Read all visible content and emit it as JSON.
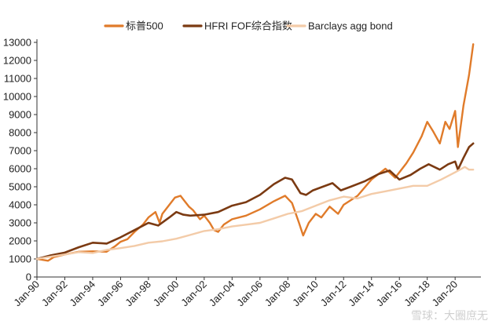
{
  "chart_data": {
    "type": "line",
    "title": "",
    "xlabel": "",
    "ylabel": "",
    "ylim": [
      0,
      13000
    ],
    "y_ticks": [
      0,
      1000,
      2000,
      3000,
      4000,
      5000,
      6000,
      7000,
      8000,
      9000,
      10000,
      11000,
      12000,
      13000
    ],
    "x_range": [
      1990.0,
      2021.4
    ],
    "x_tick_labels": [
      "Jan-90",
      "Jan-92",
      "Jan-94",
      "Jan-96",
      "Jan-98",
      "Jan-00",
      "Jan-02",
      "Jan-04",
      "Jan-06",
      "Jan-08",
      "Jan-10",
      "Jan-12",
      "Jan-14",
      "Jan-16",
      "Jan-18",
      "Jan-20"
    ],
    "x_tick_years": [
      1990,
      1992,
      1994,
      1996,
      1998,
      2000,
      2002,
      2004,
      2006,
      2008,
      2010,
      2012,
      2014,
      2016,
      2018,
      2020
    ],
    "grid": false,
    "legend_position": "top",
    "series": [
      {
        "name": "标普500",
        "color": "#E07B2A",
        "width": 2.4,
        "points": [
          [
            1990.0,
            1000
          ],
          [
            1990.8,
            900
          ],
          [
            1991.2,
            1100
          ],
          [
            1992.0,
            1250
          ],
          [
            1993.0,
            1400
          ],
          [
            1994.0,
            1420
          ],
          [
            1995.0,
            1400
          ],
          [
            1995.6,
            1700
          ],
          [
            1996.0,
            1950
          ],
          [
            1996.5,
            2100
          ],
          [
            1997.0,
            2500
          ],
          [
            1997.6,
            2900
          ],
          [
            1998.0,
            3300
          ],
          [
            1998.5,
            3600
          ],
          [
            1998.8,
            3000
          ],
          [
            1999.0,
            3500
          ],
          [
            1999.5,
            4000
          ],
          [
            1999.9,
            4400
          ],
          [
            2000.3,
            4500
          ],
          [
            2000.6,
            4200
          ],
          [
            2000.9,
            3900
          ],
          [
            2001.2,
            3700
          ],
          [
            2001.7,
            3200
          ],
          [
            2002.0,
            3400
          ],
          [
            2002.4,
            3000
          ],
          [
            2002.7,
            2600
          ],
          [
            2003.0,
            2500
          ],
          [
            2003.4,
            2900
          ],
          [
            2004.0,
            3200
          ],
          [
            2005.0,
            3400
          ],
          [
            2006.0,
            3750
          ],
          [
            2007.0,
            4200
          ],
          [
            2007.8,
            4500
          ],
          [
            2008.3,
            4100
          ],
          [
            2008.8,
            3000
          ],
          [
            2009.1,
            2300
          ],
          [
            2009.5,
            3000
          ],
          [
            2010.0,
            3500
          ],
          [
            2010.4,
            3300
          ],
          [
            2011.0,
            3900
          ],
          [
            2011.6,
            3500
          ],
          [
            2012.0,
            4000
          ],
          [
            2013.0,
            4500
          ],
          [
            2014.0,
            5400
          ],
          [
            2015.0,
            6000
          ],
          [
            2015.7,
            5500
          ],
          [
            2016.0,
            5800
          ],
          [
            2016.5,
            6300
          ],
          [
            2017.0,
            6900
          ],
          [
            2017.6,
            7800
          ],
          [
            2018.0,
            8600
          ],
          [
            2018.4,
            8100
          ],
          [
            2018.9,
            7400
          ],
          [
            2019.3,
            8600
          ],
          [
            2019.6,
            8200
          ],
          [
            2020.0,
            9200
          ],
          [
            2020.2,
            7200
          ],
          [
            2020.6,
            9500
          ],
          [
            2021.0,
            11200
          ],
          [
            2021.3,
            12900
          ]
        ]
      },
      {
        "name": "HFRI FOF综合指数",
        "color": "#7B3A12",
        "width": 2.6,
        "points": [
          [
            1990.0,
            1000
          ],
          [
            1991.0,
            1200
          ],
          [
            1992.0,
            1350
          ],
          [
            1993.0,
            1650
          ],
          [
            1994.0,
            1900
          ],
          [
            1995.0,
            1850
          ],
          [
            1996.0,
            2200
          ],
          [
            1997.0,
            2600
          ],
          [
            1998.0,
            3000
          ],
          [
            1998.7,
            2850
          ],
          [
            1999.5,
            3300
          ],
          [
            2000.0,
            3600
          ],
          [
            2000.5,
            3450
          ],
          [
            2001.0,
            3400
          ],
          [
            2002.0,
            3450
          ],
          [
            2003.0,
            3600
          ],
          [
            2004.0,
            3950
          ],
          [
            2005.0,
            4150
          ],
          [
            2006.0,
            4550
          ],
          [
            2007.0,
            5150
          ],
          [
            2007.8,
            5500
          ],
          [
            2008.3,
            5400
          ],
          [
            2008.9,
            4650
          ],
          [
            2009.3,
            4550
          ],
          [
            2009.8,
            4800
          ],
          [
            2010.5,
            5000
          ],
          [
            2011.2,
            5200
          ],
          [
            2011.8,
            4800
          ],
          [
            2012.5,
            5000
          ],
          [
            2013.5,
            5300
          ],
          [
            2014.5,
            5700
          ],
          [
            2015.3,
            5900
          ],
          [
            2016.0,
            5400
          ],
          [
            2016.8,
            5650
          ],
          [
            2017.5,
            6000
          ],
          [
            2018.1,
            6250
          ],
          [
            2018.9,
            5950
          ],
          [
            2019.5,
            6250
          ],
          [
            2020.0,
            6400
          ],
          [
            2020.2,
            5950
          ],
          [
            2020.6,
            6600
          ],
          [
            2021.0,
            7200
          ],
          [
            2021.3,
            7400
          ]
        ]
      },
      {
        "name": "Barclays agg bond",
        "color": "#F3CBA8",
        "width": 2.4,
        "points": [
          [
            1990.0,
            1000
          ],
          [
            1991.0,
            1130
          ],
          [
            1992.0,
            1250
          ],
          [
            1993.0,
            1380
          ],
          [
            1994.0,
            1330
          ],
          [
            1995.0,
            1500
          ],
          [
            1996.0,
            1600
          ],
          [
            1997.0,
            1720
          ],
          [
            1998.0,
            1900
          ],
          [
            1999.0,
            1980
          ],
          [
            2000.0,
            2120
          ],
          [
            2001.0,
            2330
          ],
          [
            2002.0,
            2550
          ],
          [
            2003.0,
            2650
          ],
          [
            2004.0,
            2800
          ],
          [
            2005.0,
            2900
          ],
          [
            2006.0,
            3000
          ],
          [
            2007.0,
            3250
          ],
          [
            2008.0,
            3500
          ],
          [
            2009.0,
            3650
          ],
          [
            2010.0,
            3950
          ],
          [
            2011.0,
            4250
          ],
          [
            2012.0,
            4450
          ],
          [
            2013.0,
            4350
          ],
          [
            2014.0,
            4600
          ],
          [
            2015.0,
            4750
          ],
          [
            2016.0,
            4900
          ],
          [
            2017.0,
            5050
          ],
          [
            2018.0,
            5050
          ],
          [
            2019.0,
            5400
          ],
          [
            2020.0,
            5800
          ],
          [
            2020.7,
            6100
          ],
          [
            2021.0,
            5950
          ],
          [
            2021.3,
            5950
          ]
        ]
      }
    ],
    "watermark": "雪球：大圈庶无"
  }
}
